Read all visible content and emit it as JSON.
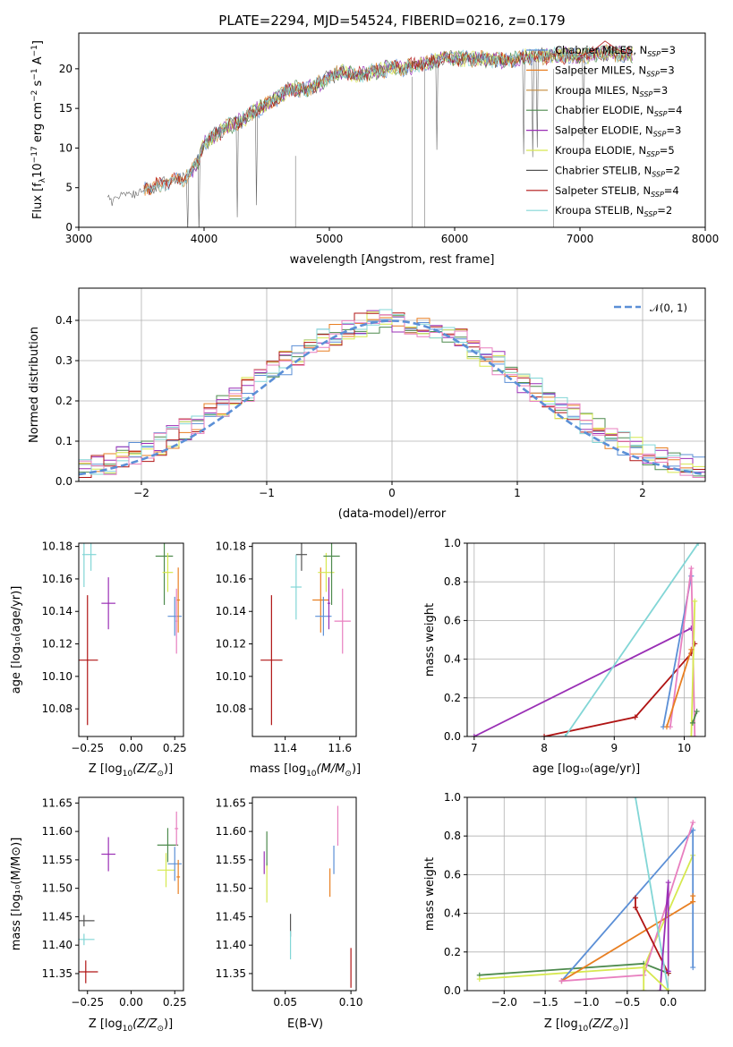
{
  "colors": {
    "Chabrier MILES": "#5b8fd6",
    "Salpeter MILES": "#e87f22",
    "Kroupa MILES": "#c48b3c",
    "Chabrier ELODIE": "#4d8a4d",
    "Salpeter ELODIE": "#9a2fb5",
    "Kroupa ELODIE": "#d6e84f",
    "Chabrier STELIB": "#555555",
    "Salpeter STELIB": "#b01414",
    "Kroupa STELIB": "#82d6d6",
    "pink": "#e87fbf",
    "gauss": "#5b8fd6"
  },
  "chart_data": [
    {
      "type": "line",
      "title": "PLATE=2294, MJD=54524, FIBERID=0216, z=0.179",
      "xlabel": "wavelength [Angstrom, rest frame]",
      "ylabel_parts": [
        "Flux [f",
        "λ",
        "10",
        "−17",
        " erg cm",
        "−2",
        " s",
        "−1",
        " A",
        "−1",
        "]"
      ],
      "xlim": [
        3000,
        8000
      ],
      "ylim": [
        0,
        24.5
      ],
      "xticks": [
        3000,
        4000,
        5000,
        6000,
        7000,
        8000
      ],
      "yticks": [
        0,
        5,
        10,
        15,
        20
      ],
      "x": [
        3250,
        3400,
        3550,
        3700,
        3850,
        3950,
        4000,
        4100,
        4200,
        4300,
        4400,
        4500,
        4600,
        4700,
        4800,
        4900,
        5000,
        5100,
        5200,
        5300,
        5400,
        5500,
        5600,
        5700,
        5800,
        5900,
        6000,
        6200,
        6400,
        6600,
        6800,
        7000,
        7200,
        7400
      ],
      "y": [
        3.5,
        4.5,
        5.0,
        5.6,
        6.2,
        8.2,
        10.5,
        11.8,
        12.8,
        13.5,
        14.6,
        15.5,
        16.5,
        17.5,
        17.3,
        18.0,
        19.0,
        19.6,
        19.2,
        19.4,
        19.8,
        20.2,
        20.0,
        20.6,
        20.8,
        21.4,
        21.2,
        21.3,
        21.0,
        21.5,
        21.7,
        21.6,
        22.0,
        21.8
      ],
      "legend": [
        {
          "base": "Chabrier MILES, N",
          "sub": "SSP",
          "tail": "=3"
        },
        {
          "base": "Salpeter MILES, N",
          "sub": "SSP",
          "tail": "=3"
        },
        {
          "base": "Kroupa MILES, N",
          "sub": "SSP",
          "tail": "=3"
        },
        {
          "base": "Chabrier ELODIE, N",
          "sub": "SSP",
          "tail": "=4"
        },
        {
          "base": "Salpeter ELODIE, N",
          "sub": "SSP",
          "tail": "=3"
        },
        {
          "base": "Kroupa ELODIE, N",
          "sub": "SSP",
          "tail": "=5"
        },
        {
          "base": "Chabrier STELIB, N",
          "sub": "SSP",
          "tail": "=2"
        },
        {
          "base": "Salpeter STELIB, N",
          "sub": "SSP",
          "tail": "=4"
        },
        {
          "base": "Kroupa STELIB, N",
          "sub": "SSP",
          "tail": "=2"
        }
      ],
      "legend_position": "top-right"
    },
    {
      "type": "histogram",
      "xlabel": "(data-model)/error",
      "ylabel": "Normed distribution",
      "xlim": [
        -2.5,
        2.5
      ],
      "ylim": [
        0,
        0.48
      ],
      "xticks": [
        -2,
        -1,
        0,
        1,
        2
      ],
      "xtick_labels": [
        "−2",
        "−1",
        "0",
        "1",
        "2"
      ],
      "yticks": [
        0,
        0.1,
        0.2,
        0.3,
        0.4
      ],
      "ytick_labels": [
        "0.0",
        "0.1",
        "0.2",
        "0.3",
        "0.4"
      ],
      "bin_edges_start": -2.5,
      "bin_width": 0.1,
      "legend_label": "𝒩(0, 1)",
      "legend_position": "top-right",
      "grid": true
    },
    {
      "type": "scatter",
      "xlabel_base": "Z [log",
      "xlabel_sub": "10",
      "xlabel_tail": "(Z/Z",
      "xlabel_sun": "⊙",
      "xlabel_end": ")]",
      "ylabel": "age  [log₁₀(age/yr)]",
      "xlim": [
        -0.3,
        0.3
      ],
      "ylim": [
        10.063,
        10.182
      ],
      "xticks": [
        -0.25,
        0.0,
        0.25
      ],
      "xtick_labels": [
        "−0.25",
        "0.00",
        "0.25"
      ],
      "yticks": [
        10.08,
        10.1,
        10.12,
        10.14,
        10.16,
        10.18
      ],
      "points": [
        {
          "series": "Kroupa STELIB",
          "x": -0.23,
          "y": 10.175,
          "xerr": 0.03,
          "yerr": 0.01
        },
        {
          "series": "Kroupa STELIB",
          "x": -0.27,
          "y": 10.175,
          "xerr": 0.01,
          "yerr": 0.02
        },
        {
          "series": "Salpeter STELIB",
          "x": -0.25,
          "y": 10.11,
          "xerr": 0.06,
          "yerr": 0.04
        },
        {
          "series": "Salpeter ELODIE",
          "x": -0.13,
          "y": 10.145,
          "xerr": 0.04,
          "yerr": 0.016
        },
        {
          "series": "Chabrier ELODIE",
          "x": 0.19,
          "y": 10.174,
          "xerr": 0.05,
          "yerr": 0.03
        },
        {
          "series": "Kroupa ELODIE",
          "x": 0.21,
          "y": 10.164,
          "xerr": 0.03,
          "yerr": 0.012
        },
        {
          "series": "Chabrier MILES",
          "x": 0.25,
          "y": 10.137,
          "xerr": 0.04,
          "yerr": 0.012
        },
        {
          "series": "Salpeter MILES",
          "x": 0.27,
          "y": 10.147,
          "xerr": 0.01,
          "yerr": 0.02
        },
        {
          "series": "pink",
          "x": 0.26,
          "y": 10.134,
          "xerr": 0.005,
          "yerr": 0.02
        }
      ]
    },
    {
      "type": "scatter",
      "xlabel_base": "mass [log",
      "xlabel_sub": "10",
      "xlabel_tail": "(M/M",
      "xlabel_sun": "⊙",
      "xlabel_end": ")]",
      "xlim": [
        11.28,
        11.66
      ],
      "ylim": [
        10.063,
        10.182
      ],
      "xticks": [
        11.4,
        11.6
      ],
      "xtick_labels": [
        "11.4",
        "11.6"
      ],
      "yticks": [
        10.08,
        10.1,
        10.12,
        10.14,
        10.16,
        10.18
      ],
      "points": [
        {
          "series": "Salpeter STELIB",
          "x": 11.35,
          "y": 10.11,
          "xerr": 0.04,
          "yerr": 0.04
        },
        {
          "series": "Kroupa STELIB",
          "x": 11.44,
          "y": 10.155,
          "xerr": 0.02,
          "yerr": 0.02
        },
        {
          "series": "Chabrier STELIB",
          "x": 11.46,
          "y": 10.175,
          "xerr": 0.02,
          "yerr": 0.01
        },
        {
          "series": "Salpeter MILES",
          "x": 11.53,
          "y": 10.147,
          "xerr": 0.03,
          "yerr": 0.02
        },
        {
          "series": "Kroupa ELODIE",
          "x": 11.55,
          "y": 10.164,
          "xerr": 0.03,
          "yerr": 0.012
        },
        {
          "series": "Chabrier MILES",
          "x": 11.54,
          "y": 10.137,
          "xerr": 0.03,
          "yerr": 0.012
        },
        {
          "series": "Salpeter ELODIE",
          "x": 11.56,
          "y": 10.145,
          "xerr": 0.005,
          "yerr": 0.016
        },
        {
          "series": "Chabrier ELODIE",
          "x": 11.57,
          "y": 10.174,
          "xerr": 0.03,
          "yerr": 0.03
        },
        {
          "series": "pink",
          "x": 11.61,
          "y": 10.134,
          "xerr": 0.03,
          "yerr": 0.02
        }
      ]
    },
    {
      "type": "line",
      "xlabel": "age  [log₁₀(age/yr)]",
      "ylabel": "mass weight",
      "xlim": [
        6.9,
        10.3
      ],
      "ylim": [
        0,
        1.0
      ],
      "xticks": [
        7,
        8,
        9,
        10
      ],
      "yticks": [
        0,
        0.2,
        0.4,
        0.6,
        0.8,
        1.0
      ],
      "ytick_labels": [
        "0.0",
        "0.2",
        "0.4",
        "0.6",
        "0.8",
        "1.0"
      ],
      "grid": true,
      "series": [
        {
          "name": "Salpeter ELODIE",
          "x": [
            7.0,
            10.1
          ],
          "y": [
            0.0,
            0.56
          ]
        },
        {
          "name": "Salpeter STELIB",
          "x": [
            8.0,
            9.3,
            10.1,
            10.15
          ],
          "y": [
            0.0,
            0.1,
            0.43,
            0.48
          ]
        },
        {
          "name": "Kroupa STELIB",
          "x": [
            8.3,
            10.2
          ],
          "y": [
            0.0,
            1.0
          ]
        },
        {
          "name": "Chabrier MILES",
          "x": [
            9.7,
            10.1
          ],
          "y": [
            0.05,
            0.83
          ]
        },
        {
          "name": "pink",
          "x": [
            9.8,
            10.1,
            10.15
          ],
          "y": [
            0.05,
            0.87,
            0.0
          ]
        },
        {
          "name": "Kroupa ELODIE",
          "x": [
            10.1,
            10.15
          ],
          "y": [
            0.0,
            0.7
          ]
        },
        {
          "name": "Chabrier ELODIE",
          "x": [
            10.12,
            10.18
          ],
          "y": [
            0.07,
            0.13
          ]
        },
        {
          "name": "Salpeter MILES",
          "x": [
            9.75,
            10.1
          ],
          "y": [
            0.05,
            0.45
          ]
        }
      ]
    },
    {
      "type": "scatter",
      "xlabel_base": "Z [log",
      "xlabel_sub": "10",
      "xlabel_tail": "(Z/Z",
      "xlabel_sun": "⊙",
      "xlabel_end": ")]",
      "ylabel": "mass [log₁₀(M/M⊙)]",
      "xlim": [
        -0.3,
        0.3
      ],
      "ylim": [
        11.32,
        11.66
      ],
      "xticks": [
        -0.25,
        0.0,
        0.25
      ],
      "xtick_labels": [
        "−0.25",
        "0.00",
        "0.25"
      ],
      "yticks": [
        11.35,
        11.4,
        11.45,
        11.5,
        11.55,
        11.6,
        11.65
      ],
      "points": [
        {
          "series": "Chabrier STELIB",
          "x": -0.27,
          "y": 11.443,
          "xerr": 0.06,
          "yerr": 0.01
        },
        {
          "series": "Kroupa STELIB",
          "x": -0.27,
          "y": 11.41,
          "xerr": 0.06,
          "yerr": 0.01
        },
        {
          "series": "Salpeter STELIB",
          "x": -0.26,
          "y": 11.353,
          "xerr": 0.07,
          "yerr": 0.02
        },
        {
          "series": "Salpeter ELODIE",
          "x": -0.13,
          "y": 11.56,
          "xerr": 0.04,
          "yerr": 0.03
        },
        {
          "series": "Chabrier ELODIE",
          "x": 0.21,
          "y": 11.576,
          "xerr": 0.06,
          "yerr": 0.03
        },
        {
          "series": "Kroupa ELODIE",
          "x": 0.2,
          "y": 11.532,
          "xerr": 0.05,
          "yerr": 0.03
        },
        {
          "series": "Chabrier MILES",
          "x": 0.25,
          "y": 11.543,
          "xerr": 0.04,
          "yerr": 0.03
        },
        {
          "series": "Salpeter MILES",
          "x": 0.27,
          "y": 11.52,
          "xerr": 0.01,
          "yerr": 0.03
        },
        {
          "series": "pink",
          "x": 0.26,
          "y": 11.605,
          "xerr": 0.01,
          "yerr": 0.03
        }
      ]
    },
    {
      "type": "scatter",
      "xlabel": "E(B-V)",
      "xlim": [
        0.025,
        0.104
      ],
      "ylim": [
        11.32,
        11.66
      ],
      "xticks": [
        0.05,
        0.1
      ],
      "xtick_labels": [
        "0.05",
        "0.10"
      ],
      "yticks": [
        11.35,
        11.4,
        11.45,
        11.5,
        11.55,
        11.6,
        11.65
      ],
      "points": [
        {
          "series": "Salpeter ELODIE",
          "x": 0.034,
          "y": 11.545,
          "xerr": 0.0,
          "yerr": 0.02
        },
        {
          "series": "Kroupa ELODIE",
          "x": 0.036,
          "y": 11.51,
          "xerr": 0.0,
          "yerr": 0.035
        },
        {
          "series": "Chabrier ELODIE",
          "x": 0.036,
          "y": 11.57,
          "xerr": 0.0,
          "yerr": 0.03
        },
        {
          "series": "Chabrier STELIB",
          "x": 0.054,
          "y": 11.435,
          "xerr": 0.0,
          "yerr": 0.02
        },
        {
          "series": "Kroupa STELIB",
          "x": 0.054,
          "y": 11.4,
          "xerr": 0.0,
          "yerr": 0.025
        },
        {
          "series": "Salpeter MILES",
          "x": 0.084,
          "y": 11.51,
          "xerr": 0.0,
          "yerr": 0.025
        },
        {
          "series": "Chabrier MILES",
          "x": 0.087,
          "y": 11.55,
          "xerr": 0.0,
          "yerr": 0.025
        },
        {
          "series": "pink",
          "x": 0.09,
          "y": 11.61,
          "xerr": 0.0,
          "yerr": 0.035
        },
        {
          "series": "Salpeter STELIB",
          "x": 0.1,
          "y": 11.36,
          "xerr": 0.0,
          "yerr": 0.035
        }
      ]
    },
    {
      "type": "line",
      "xlabel_base": "Z [log",
      "xlabel_sub": "10",
      "xlabel_tail": "(Z/Z",
      "xlabel_sun": "⊙",
      "xlabel_end": ")]",
      "ylabel": "mass weight",
      "xlim": [
        -2.45,
        0.45
      ],
      "ylim": [
        0,
        1.0
      ],
      "xticks": [
        -2.0,
        -1.5,
        -1.0,
        -0.5,
        0.0
      ],
      "xtick_labels": [
        "−2.0",
        "−1.5",
        "−1.0",
        "−0.5",
        "0.0"
      ],
      "yticks": [
        0,
        0.2,
        0.4,
        0.6,
        0.8,
        1.0
      ],
      "ytick_labels": [
        "0.0",
        "0.2",
        "0.4",
        "0.6",
        "0.8",
        "1.0"
      ],
      "grid": true,
      "series": [
        {
          "name": "Chabrier ELODIE",
          "x": [
            -2.3,
            -0.3,
            0.0
          ],
          "y": [
            0.08,
            0.14,
            0.09
          ]
        },
        {
          "name": "Kroupa ELODIE",
          "x": [
            -2.3,
            -0.3,
            0.3
          ],
          "y": [
            0.06,
            0.12,
            0.7
          ]
        },
        {
          "name": "Chabrier MILES",
          "x": [
            -1.3,
            0.3,
            0.3
          ],
          "y": [
            0.05,
            0.83,
            0.12
          ]
        },
        {
          "name": "Salpeter MILES",
          "x": [
            -1.3,
            0.3,
            0.3
          ],
          "y": [
            0.05,
            0.46,
            0.49
          ]
        },
        {
          "name": "pink",
          "x": [
            -1.3,
            -0.3,
            0.3
          ],
          "y": [
            0.05,
            0.08,
            0.87
          ]
        },
        {
          "name": "Salpeter STELIB",
          "x": [
            -0.4,
            -0.4,
            0.0
          ],
          "y": [
            0.48,
            0.43,
            0.09
          ]
        },
        {
          "name": "Kroupa STELIB",
          "x": [
            -0.4,
            0.0
          ],
          "y": [
            1.0,
            0.0
          ]
        },
        {
          "name": "Salpeter ELODIE",
          "x": [
            -0.1,
            0.0,
            0.0
          ],
          "y": [
            0.0,
            0.56,
            0.1
          ]
        },
        {
          "name": "Kroupa ELODIE",
          "x": [
            -0.3,
            -0.3,
            0.0
          ],
          "y": [
            0.0,
            0.12,
            0.0
          ]
        }
      ]
    }
  ]
}
